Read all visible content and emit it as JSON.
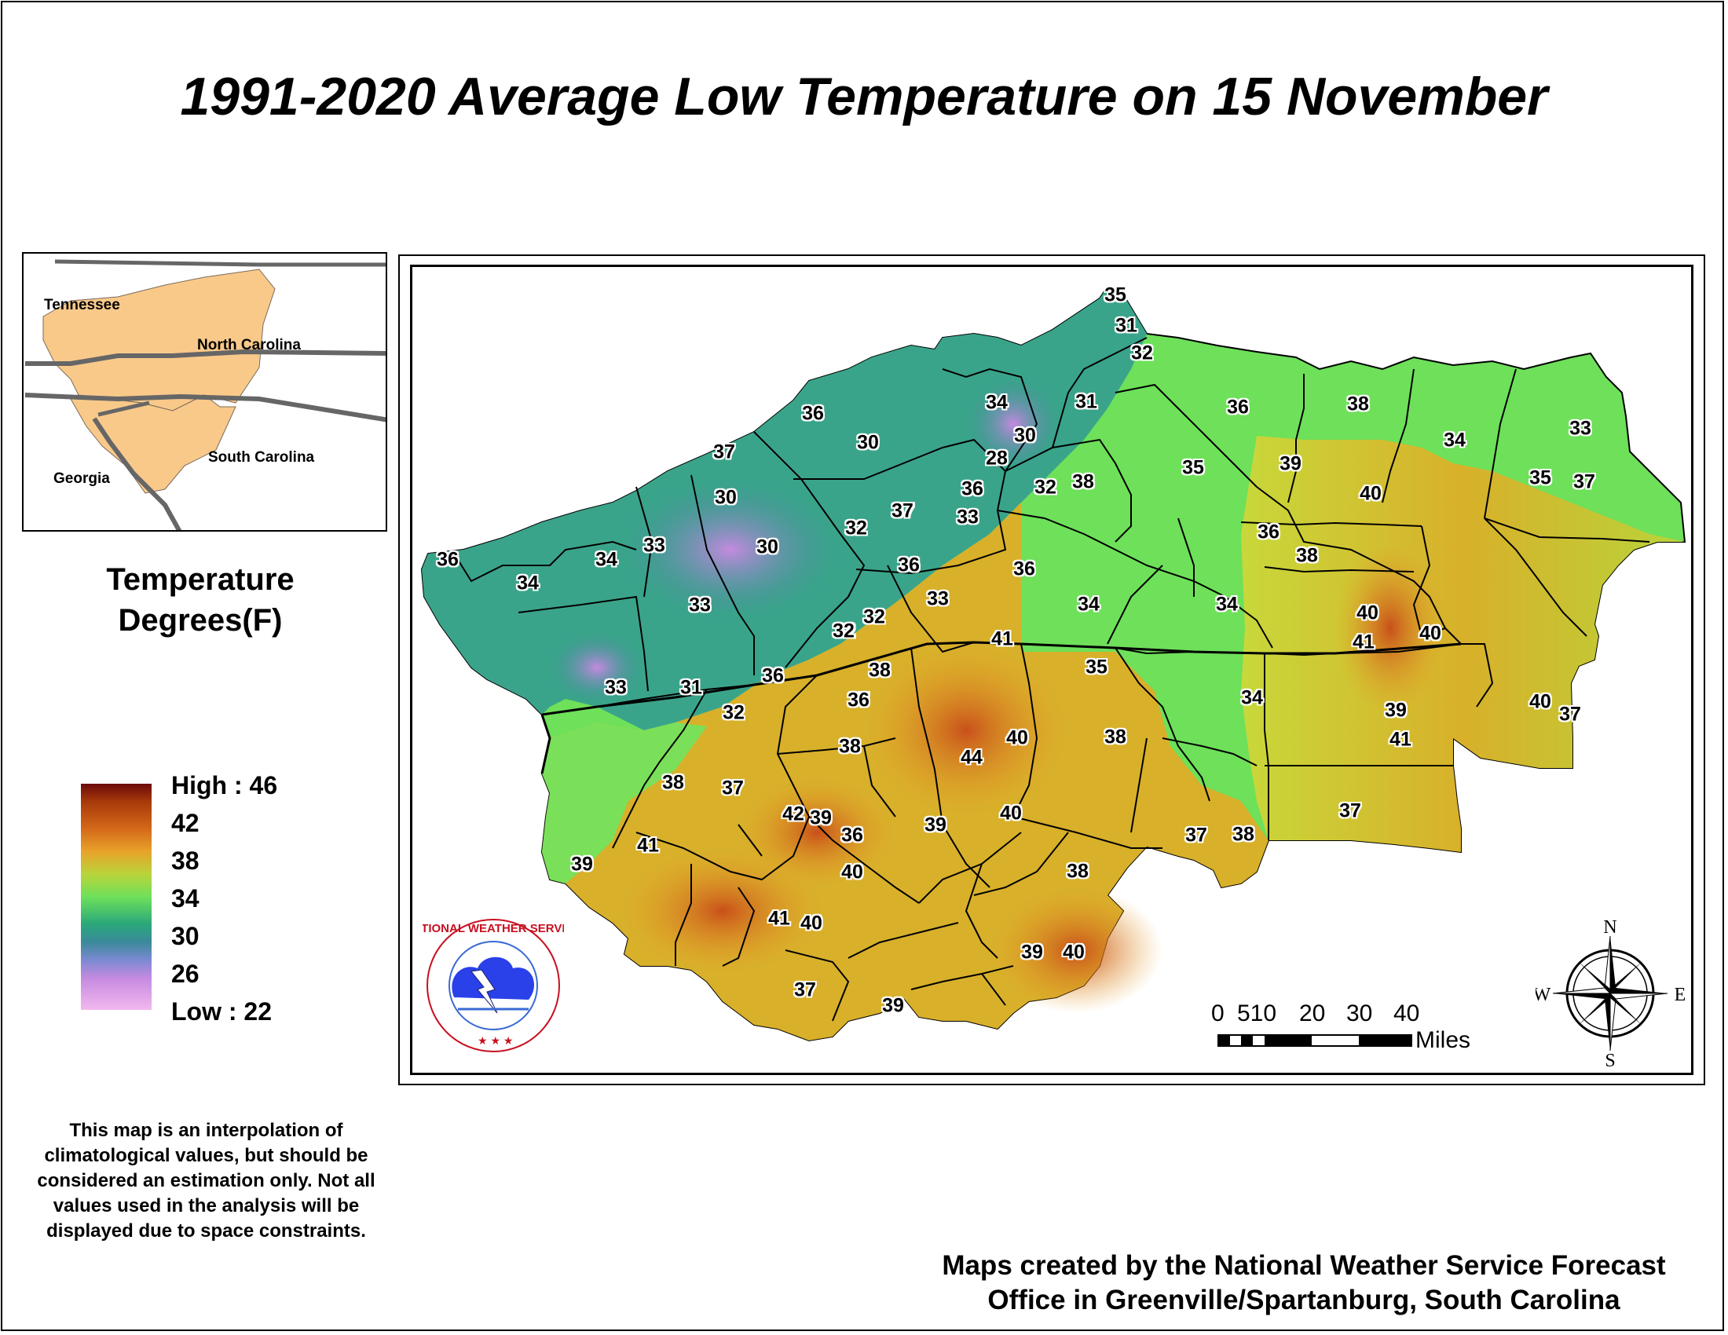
{
  "title": "1991-2020 Average Low Temperature on 15 November",
  "inset_map": {
    "labels": [
      "Tennessee",
      "North Carolina",
      "Georgia",
      "South Carolina"
    ]
  },
  "legend": {
    "title_line1": "Temperature",
    "title_line2": "Degrees(F)",
    "high_label": "High : 46",
    "low_label": "Low : 22",
    "ticks": [
      "42",
      "38",
      "34",
      "30",
      "26"
    ],
    "colors": [
      "#6b0a0a",
      "#d4691a",
      "#e8a32a",
      "#b9d43a",
      "#6ee05a",
      "#2aa87a",
      "#7c8ad2",
      "#f2b8ee"
    ]
  },
  "disclaimer": "This map is an interpolation of climatological values, but should be considered an estimation only. Not all values used in the analysis will be displayed due to space constraints.",
  "credit_line1": "Maps created by the National Weather Service Forecast",
  "credit_line2": "Office in Greenville/Spartanburg, South Carolina",
  "scale_bar": {
    "numbers": [
      "0",
      "510",
      "20",
      "30",
      "40"
    ],
    "unit": "Miles"
  },
  "compass": {
    "n": "N",
    "s": "S",
    "e": "E",
    "w": "W"
  },
  "logo": {
    "text": "NATIONAL WEATHER SERVICE"
  },
  "station_values": [
    "35",
    "31",
    "32",
    "31",
    "36",
    "38",
    "36",
    "34",
    "30",
    "30",
    "28",
    "34",
    "39",
    "36",
    "35",
    "32",
    "38",
    "33",
    "37",
    "35",
    "37",
    "40",
    "37",
    "30",
    "36",
    "37",
    "33",
    "30",
    "33",
    "32",
    "32",
    "34",
    "34",
    "33",
    "36",
    "36",
    "34",
    "34",
    "33",
    "32",
    "32",
    "36",
    "40",
    "41",
    "40",
    "38",
    "41",
    "33",
    "31",
    "36",
    "35",
    "34",
    "32",
    "37",
    "40",
    "38",
    "36",
    "39",
    "37",
    "41",
    "42",
    "39",
    "37",
    "38",
    "38",
    "39",
    "36",
    "40",
    "41",
    "44",
    "40",
    "38",
    "40",
    "37",
    "39",
    "41",
    "40",
    "39",
    "40",
    "37",
    "39",
    "38",
    "38",
    "37"
  ]
}
